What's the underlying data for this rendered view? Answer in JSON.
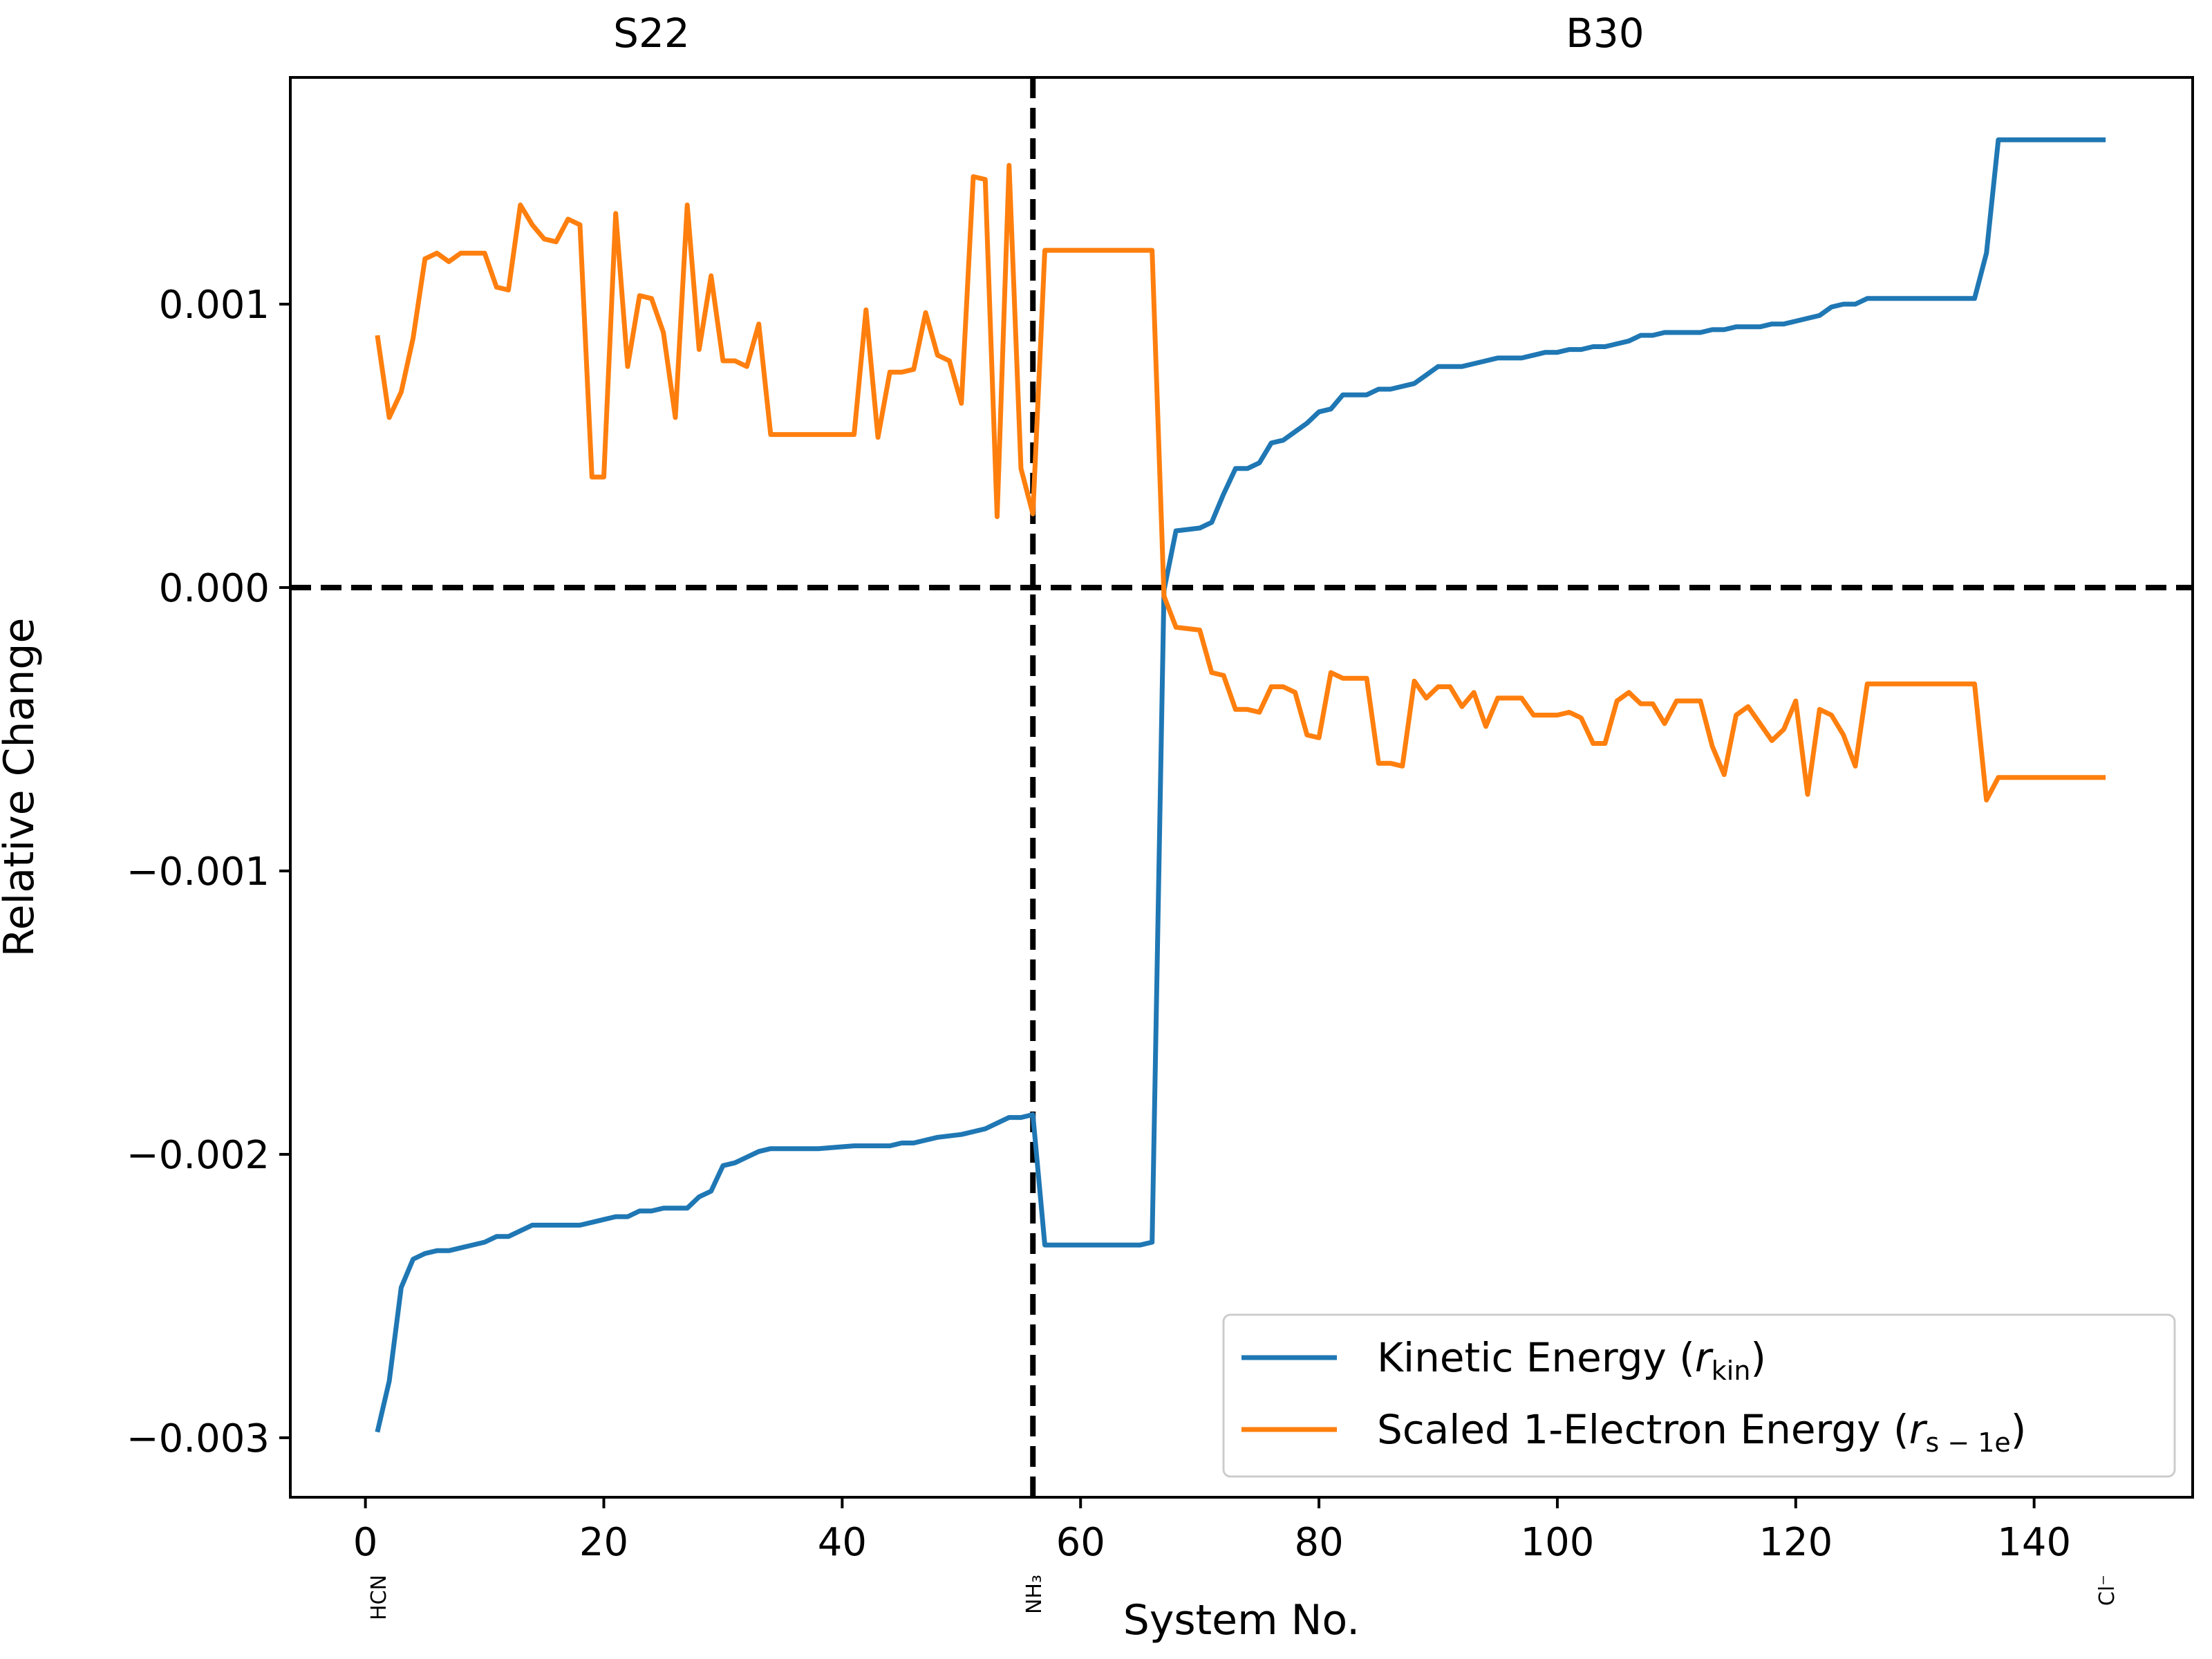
{
  "chart_data": {
    "type": "line",
    "title": "",
    "xlabel": "System No.",
    "ylabel": "Relative Change",
    "xlim": [
      -6.3,
      153.3
    ],
    "ylim": [
      -0.00321,
      0.0018
    ],
    "xticks": [
      0,
      20,
      40,
      60,
      80,
      100,
      120,
      140
    ],
    "xtick_labels": [
      "0",
      "20",
      "40",
      "60",
      "80",
      "100",
      "120",
      "140"
    ],
    "yticks": [
      0.001,
      0.0,
      -0.001,
      -0.002,
      -0.003
    ],
    "ytick_labels": [
      "0.001",
      "0.000",
      "−0.001",
      "−0.002",
      "−0.003"
    ],
    "sections": [
      {
        "label": "S22",
        "x": 24
      },
      {
        "label": "B30",
        "x": 104
      }
    ],
    "reference_lines": [
      {
        "orientation": "horizontal",
        "value": 0.0,
        "style": "dashed"
      },
      {
        "orientation": "vertical",
        "value": 56,
        "style": "dashed"
      }
    ],
    "system_labels": [
      {
        "x": 1,
        "label": "HCN"
      },
      {
        "x": 56,
        "label": "NH₃"
      },
      {
        "x": 146,
        "label": "Cl⁻"
      }
    ],
    "legend": {
      "placement": "bottom-right",
      "entries": [
        {
          "label": "Kinetic Energy (",
          "var": "r",
          "sub": "kin",
          "close": ")"
        },
        {
          "label": "Scaled 1-Electron Energy (",
          "var": "r",
          "sub": "s − 1e",
          "close": ")"
        }
      ]
    },
    "series": [
      {
        "name": "Kinetic Energy (r_kin)",
        "color": "#1f77b4",
        "points": [
          [
            1,
            -0.00298
          ],
          [
            2,
            -0.0028
          ],
          [
            3,
            -0.00247
          ],
          [
            4,
            -0.00237
          ],
          [
            5,
            -0.00235
          ],
          [
            6,
            -0.00234
          ],
          [
            7,
            -0.00234
          ],
          [
            8,
            -0.00233
          ],
          [
            9,
            -0.00232
          ],
          [
            10,
            -0.00231
          ],
          [
            11,
            -0.00229
          ],
          [
            12,
            -0.00229
          ],
          [
            13,
            -0.00227
          ],
          [
            14,
            -0.00225
          ],
          [
            15,
            -0.00225
          ],
          [
            16,
            -0.00225
          ],
          [
            17,
            -0.00225
          ],
          [
            18,
            -0.00225
          ],
          [
            19,
            -0.00224
          ],
          [
            20,
            -0.00223
          ],
          [
            21,
            -0.00222
          ],
          [
            22,
            -0.00222
          ],
          [
            23,
            -0.0022
          ],
          [
            24,
            -0.0022
          ],
          [
            25,
            -0.00219
          ],
          [
            26,
            -0.00219
          ],
          [
            27,
            -0.00219
          ],
          [
            28,
            -0.00215
          ],
          [
            29,
            -0.00213
          ],
          [
            30,
            -0.00204
          ],
          [
            31,
            -0.00203
          ],
          [
            32,
            -0.00201
          ],
          [
            33,
            -0.00199
          ],
          [
            34,
            -0.00198
          ],
          [
            35,
            -0.00198
          ],
          [
            38,
            -0.00198
          ],
          [
            41,
            -0.00197
          ],
          [
            44,
            -0.00197
          ],
          [
            45,
            -0.00196
          ],
          [
            46,
            -0.00196
          ],
          [
            47,
            -0.00195
          ],
          [
            48,
            -0.00194
          ],
          [
            50,
            -0.00193
          ],
          [
            51,
            -0.00192
          ],
          [
            52,
            -0.00191
          ],
          [
            53,
            -0.00189
          ],
          [
            54,
            -0.00187
          ],
          [
            55,
            -0.00187
          ],
          [
            56,
            -0.00186
          ],
          [
            57,
            -0.00232
          ],
          [
            60,
            -0.00232
          ],
          [
            63,
            -0.00232
          ],
          [
            64,
            -0.00232
          ],
          [
            65,
            -0.00232
          ],
          [
            66,
            -0.00231
          ],
          [
            67,
            -1e-05
          ],
          [
            68,
            0.0002
          ],
          [
            70,
            0.00021
          ],
          [
            71,
            0.00023
          ],
          [
            72,
            0.00033
          ],
          [
            73,
            0.00042
          ],
          [
            74,
            0.00042
          ],
          [
            75,
            0.00044
          ],
          [
            76,
            0.00051
          ],
          [
            77,
            0.00052
          ],
          [
            78,
            0.00055
          ],
          [
            79,
            0.00058
          ],
          [
            80,
            0.00062
          ],
          [
            81,
            0.00063
          ],
          [
            82,
            0.00068
          ],
          [
            83,
            0.00068
          ],
          [
            84,
            0.00068
          ],
          [
            85,
            0.0007
          ],
          [
            86,
            0.0007
          ],
          [
            87,
            0.00071
          ],
          [
            88,
            0.00072
          ],
          [
            89,
            0.00075
          ],
          [
            90,
            0.00078
          ],
          [
            91,
            0.00078
          ],
          [
            92,
            0.00078
          ],
          [
            93,
            0.00079
          ],
          [
            94,
            0.0008
          ],
          [
            95,
            0.00081
          ],
          [
            96,
            0.00081
          ],
          [
            97,
            0.00081
          ],
          [
            98,
            0.00082
          ],
          [
            99,
            0.00083
          ],
          [
            100,
            0.00083
          ],
          [
            101,
            0.00084
          ],
          [
            102,
            0.00084
          ],
          [
            103,
            0.00085
          ],
          [
            104,
            0.00085
          ],
          [
            105,
            0.00086
          ],
          [
            106,
            0.00087
          ],
          [
            107,
            0.00089
          ],
          [
            108,
            0.00089
          ],
          [
            109,
            0.0009
          ],
          [
            110,
            0.0009
          ],
          [
            111,
            0.0009
          ],
          [
            112,
            0.0009
          ],
          [
            113,
            0.00091
          ],
          [
            114,
            0.00091
          ],
          [
            115,
            0.00092
          ],
          [
            116,
            0.00092
          ],
          [
            117,
            0.00092
          ],
          [
            118,
            0.00093
          ],
          [
            119,
            0.00093
          ],
          [
            120,
            0.00094
          ],
          [
            121,
            0.00095
          ],
          [
            122,
            0.00096
          ],
          [
            123,
            0.00099
          ],
          [
            124,
            0.001
          ],
          [
            125,
            0.001
          ],
          [
            126,
            0.00102
          ],
          [
            128,
            0.00102
          ],
          [
            130,
            0.00102
          ],
          [
            132,
            0.00102
          ],
          [
            134,
            0.00102
          ],
          [
            135,
            0.00102
          ],
          [
            136,
            0.00118
          ],
          [
            137,
            0.00158
          ],
          [
            140,
            0.00158
          ],
          [
            143,
            0.00158
          ],
          [
            146,
            0.00158
          ]
        ]
      },
      {
        "name": "Scaled 1-Electron Energy (r_s-1e)",
        "color": "#ff7f0e",
        "points": [
          [
            1,
            0.00089
          ],
          [
            2,
            0.0006
          ],
          [
            3,
            0.00069
          ],
          [
            4,
            0.00088
          ],
          [
            5,
            0.00116
          ],
          [
            6,
            0.00118
          ],
          [
            7,
            0.00115
          ],
          [
            8,
            0.00118
          ],
          [
            9,
            0.00118
          ],
          [
            10,
            0.00118
          ],
          [
            11,
            0.00106
          ],
          [
            12,
            0.00105
          ],
          [
            13,
            0.00135
          ],
          [
            14,
            0.00128
          ],
          [
            15,
            0.00123
          ],
          [
            16,
            0.00122
          ],
          [
            17,
            0.0013
          ],
          [
            18,
            0.00128
          ],
          [
            19,
            0.00039
          ],
          [
            20,
            0.00039
          ],
          [
            21,
            0.00132
          ],
          [
            22,
            0.00078
          ],
          [
            23,
            0.00103
          ],
          [
            24,
            0.00102
          ],
          [
            25,
            0.0009
          ],
          [
            26,
            0.0006
          ],
          [
            27,
            0.00135
          ],
          [
            28,
            0.00084
          ],
          [
            29,
            0.0011
          ],
          [
            30,
            0.0008
          ],
          [
            31,
            0.0008
          ],
          [
            32,
            0.00078
          ],
          [
            33,
            0.00093
          ],
          [
            34,
            0.00054
          ],
          [
            41,
            0.00054
          ],
          [
            42,
            0.00098
          ],
          [
            43,
            0.00053
          ],
          [
            44,
            0.00076
          ],
          [
            45,
            0.00076
          ],
          [
            46,
            0.00077
          ],
          [
            47,
            0.00097
          ],
          [
            48,
            0.00082
          ],
          [
            49,
            0.0008
          ],
          [
            50,
            0.00065
          ],
          [
            51,
            0.00145
          ],
          [
            52,
            0.00144
          ],
          [
            53,
            0.00025
          ],
          [
            54,
            0.00149
          ],
          [
            55,
            0.00042
          ],
          [
            56,
            0.00026
          ],
          [
            57,
            0.00119
          ],
          [
            60,
            0.00119
          ],
          [
            61,
            0.00119
          ],
          [
            63,
            0.00119
          ],
          [
            64,
            0.00119
          ],
          [
            65,
            0.00119
          ],
          [
            66,
            0.00119
          ],
          [
            67,
            -3e-05
          ],
          [
            68,
            -0.00014
          ],
          [
            70,
            -0.00015
          ],
          [
            71,
            -0.0003
          ],
          [
            72,
            -0.00031
          ],
          [
            73,
            -0.00043
          ],
          [
            74,
            -0.00043
          ],
          [
            75,
            -0.00044
          ],
          [
            76,
            -0.00035
          ],
          [
            77,
            -0.00035
          ],
          [
            78,
            -0.00037
          ],
          [
            79,
            -0.00052
          ],
          [
            80,
            -0.00053
          ],
          [
            81,
            -0.0003
          ],
          [
            82,
            -0.00032
          ],
          [
            83,
            -0.00032
          ],
          [
            84,
            -0.00032
          ],
          [
            85,
            -0.00062
          ],
          [
            86,
            -0.00062
          ],
          [
            87,
            -0.00063
          ],
          [
            88,
            -0.00033
          ],
          [
            89,
            -0.00039
          ],
          [
            90,
            -0.00035
          ],
          [
            91,
            -0.00035
          ],
          [
            92,
            -0.00042
          ],
          [
            93,
            -0.00037
          ],
          [
            94,
            -0.00049
          ],
          [
            95,
            -0.00039
          ],
          [
            96,
            -0.00039
          ],
          [
            97,
            -0.00039
          ],
          [
            98,
            -0.00045
          ],
          [
            99,
            -0.00045
          ],
          [
            100,
            -0.00045
          ],
          [
            101,
            -0.00044
          ],
          [
            102,
            -0.00046
          ],
          [
            103,
            -0.00055
          ],
          [
            104,
            -0.00055
          ],
          [
            105,
            -0.0004
          ],
          [
            106,
            -0.00037
          ],
          [
            107,
            -0.00041
          ],
          [
            108,
            -0.00041
          ],
          [
            109,
            -0.00048
          ],
          [
            110,
            -0.0004
          ],
          [
            111,
            -0.0004
          ],
          [
            112,
            -0.0004
          ],
          [
            113,
            -0.00056
          ],
          [
            114,
            -0.00066
          ],
          [
            115,
            -0.00045
          ],
          [
            116,
            -0.00042
          ],
          [
            117,
            -0.00048
          ],
          [
            118,
            -0.00054
          ],
          [
            119,
            -0.0005
          ],
          [
            120,
            -0.0004
          ],
          [
            121,
            -0.00073
          ],
          [
            122,
            -0.00043
          ],
          [
            123,
            -0.00045
          ],
          [
            124,
            -0.00052
          ],
          [
            125,
            -0.00063
          ],
          [
            126,
            -0.00034
          ],
          [
            128,
            -0.00034
          ],
          [
            130,
            -0.00034
          ],
          [
            132,
            -0.00034
          ],
          [
            134,
            -0.00034
          ],
          [
            135,
            -0.00034
          ],
          [
            136,
            -0.00075
          ],
          [
            137,
            -0.00067
          ],
          [
            140,
            -0.00067
          ],
          [
            143,
            -0.00067
          ],
          [
            146,
            -0.00067
          ]
        ]
      }
    ]
  }
}
